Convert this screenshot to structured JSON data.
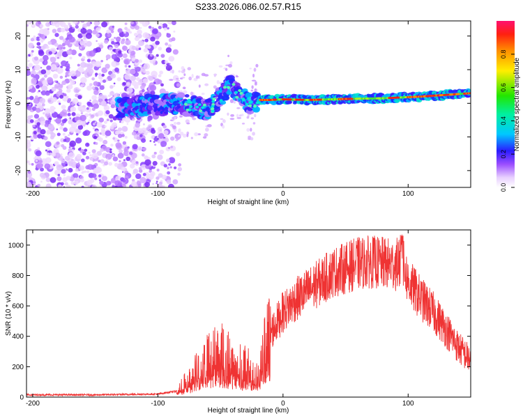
{
  "title": "S233.2026.086.02.57.R15",
  "chart_data": [
    {
      "type": "heatmap",
      "name": "spectrogram",
      "xlabel": "Height of straight line (km)",
      "ylabel": "Frequency (Hz)",
      "xlim": [
        -205,
        150
      ],
      "ylim": [
        -25,
        24.5
      ],
      "xticks": [
        -200,
        -100,
        0,
        100
      ],
      "yticks": [
        -20,
        -10,
        0,
        10,
        20
      ],
      "colorbar": {
        "label": "Normalized spectral amplitude",
        "range": [
          0,
          1
        ],
        "ticks": [
          0.0,
          0.2,
          0.4,
          0.6,
          0.8
        ]
      },
      "ridge": {
        "description_points_x": [
          -130,
          -100,
          -85,
          -70,
          -60,
          -50,
          -42,
          -35,
          -28,
          -20,
          -10,
          0,
          20,
          50,
          80,
          110,
          150
        ],
        "description_points_y": [
          -1.5,
          -0.5,
          0,
          -1,
          -2,
          2,
          6,
          3,
          0,
          1,
          1,
          1.2,
          1,
          1.3,
          1.5,
          2,
          3
        ]
      }
    },
    {
      "type": "line",
      "name": "snr",
      "xlabel": "Height of straight line (km)",
      "ylabel": "SNR (10 * v/v)",
      "xlim": [
        -205,
        150
      ],
      "ylim": [
        0,
        1100
      ],
      "xticks": [
        -200,
        -100,
        0,
        100
      ],
      "yticks": [
        0,
        200,
        400,
        600,
        800,
        1000
      ],
      "color": "#ef3333",
      "envelope_x": [
        -205,
        -150,
        -100,
        -85,
        -75,
        -60,
        -50,
        -40,
        -30,
        -20,
        -15,
        -10,
        0,
        10,
        20,
        30,
        40,
        50,
        60,
        70,
        80,
        90,
        95,
        100,
        110,
        120,
        130,
        140,
        150
      ],
      "envelope_y": [
        15,
        15,
        20,
        40,
        120,
        250,
        300,
        240,
        200,
        130,
        300,
        420,
        560,
        640,
        700,
        760,
        820,
        850,
        880,
        890,
        880,
        870,
        900,
        760,
        650,
        560,
        450,
        330,
        240
      ]
    }
  ]
}
